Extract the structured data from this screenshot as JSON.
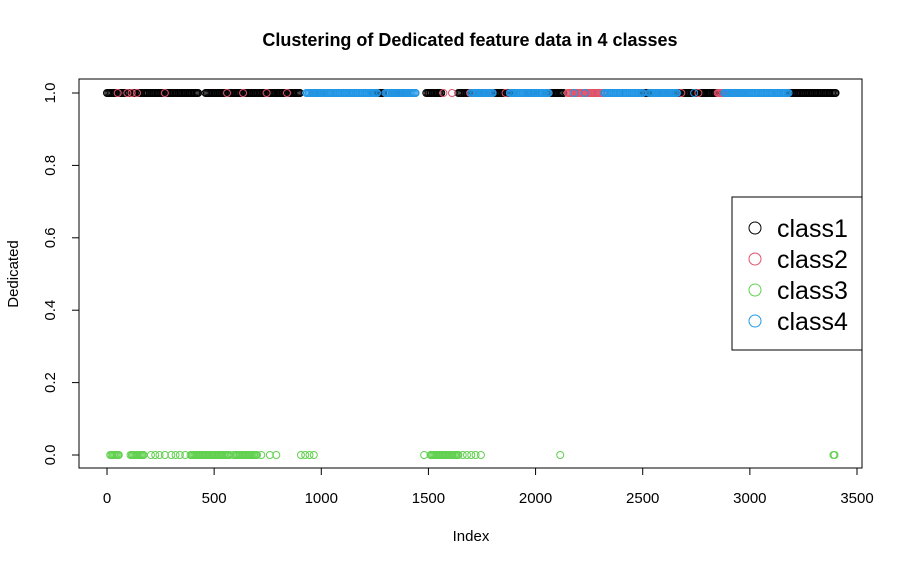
{
  "chart_data": {
    "type": "scatter",
    "title": "Clustering of Dedicated feature data in 4 classes",
    "xlabel": "Index",
    "ylabel": "Dedicated",
    "xlim": [
      0,
      3500
    ],
    "ylim": [
      0,
      1
    ],
    "x_ticks": [
      "0",
      "500",
      "1000",
      "1500",
      "2000",
      "2500",
      "3000",
      "3500"
    ],
    "y_ticks": [
      "0.0",
      "0.2",
      "0.4",
      "0.6",
      "0.8",
      "1.0"
    ],
    "legend_position": "right",
    "marker": "open-circle",
    "series": [
      {
        "name": "class1",
        "color": "#000000",
        "y": 1,
        "x_ranges": [
          [
            0,
            70
          ],
          [
            80,
            160
          ],
          [
            170,
            420
          ],
          [
            460,
            900
          ],
          [
            960,
            1000
          ],
          [
            1240,
            1290
          ],
          [
            1330,
            1400
          ],
          [
            1490,
            1560
          ],
          [
            1640,
            1900
          ],
          [
            1960,
            2000
          ],
          [
            2050,
            2130
          ],
          [
            2500,
            2530
          ],
          [
            2560,
            2900
          ],
          [
            3180,
            3400
          ]
        ],
        "x_points": [
          425,
          545,
          775,
          1110,
          1510,
          2290,
          2420,
          2780,
          3250
        ]
      },
      {
        "name": "class2",
        "color": "#DF536B",
        "y": 1,
        "x_ranges": [
          [
            2150,
            2320
          ],
          [
            2850,
            2970
          ]
        ],
        "x_points": [
          50,
          95,
          115,
          140,
          270,
          560,
          635,
          745,
          840,
          960,
          1040,
          1300,
          1570,
          1610,
          1695,
          1775,
          1860,
          1940,
          2060,
          2495,
          2610,
          2680,
          2760,
          3060,
          3130
        ]
      },
      {
        "name": "class3",
        "color": "#61D04F",
        "y": 0,
        "x_ranges": [
          [
            15,
            55
          ],
          [
            110,
            170
          ],
          [
            390,
            570
          ],
          [
            600,
            700
          ],
          [
            1510,
            1640
          ]
        ],
        "x_points": [
          205,
          225,
          245,
          270,
          300,
          320,
          340,
          365,
          590,
          720,
          760,
          790,
          905,
          925,
          945,
          965,
          1480,
          1660,
          1680,
          1700,
          1720,
          1745,
          2115,
          3390,
          3395
        ]
      },
      {
        "name": "class4",
        "color": "#2297E6",
        "y": 1,
        "x_ranges": [
          [
            930,
            1260
          ],
          [
            1300,
            1440
          ],
          [
            1700,
            1800
          ],
          [
            1880,
            2060
          ],
          [
            2320,
            2500
          ],
          [
            2530,
            2660
          ],
          [
            2880,
            3180
          ]
        ],
        "x_points": [
          2180,
          2230,
          2740,
          2960
        ]
      }
    ]
  }
}
